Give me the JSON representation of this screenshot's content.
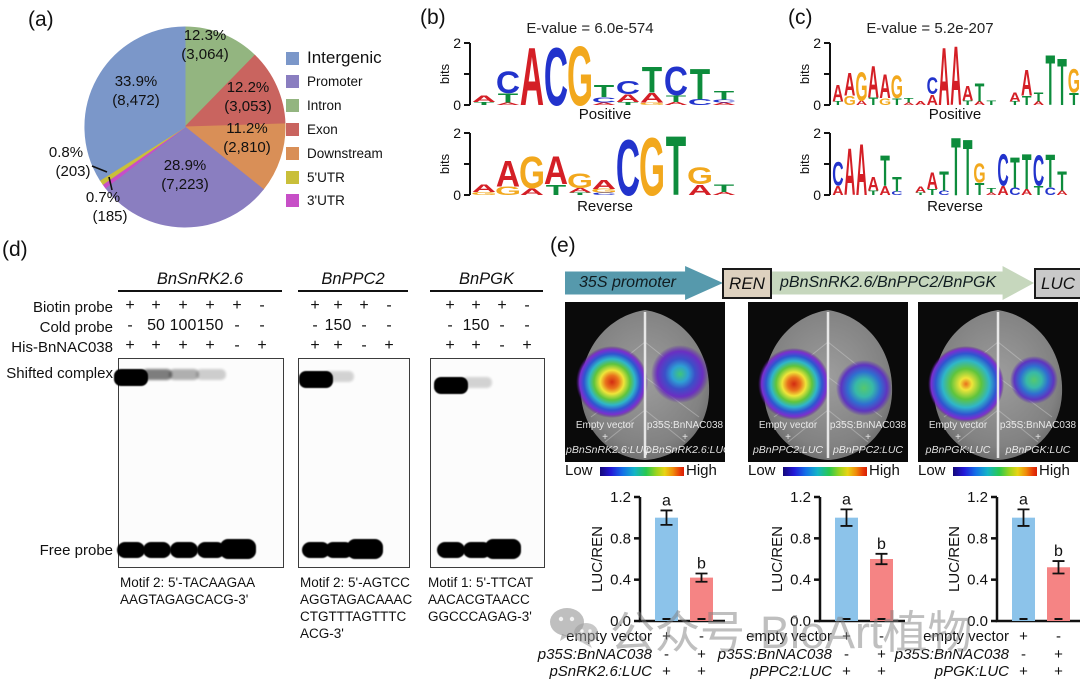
{
  "watermark": {
    "text": "公众号·BioArt植物"
  },
  "panels": {
    "a": {
      "tag": "(a)"
    },
    "b": {
      "tag": "(b)",
      "evalue": "E-value = 6.0e-574",
      "bits": "bits",
      "positive": "Positive",
      "reverse": "Reverse"
    },
    "c": {
      "tag": "(c)",
      "evalue": "E-value = 5.2e-207",
      "bits": "bits",
      "positive": "Positive",
      "reverse": "Reverse"
    },
    "d": {
      "tag": "(d)",
      "row_labels": [
        "Biotin probe",
        "Cold probe",
        "His-BnNAC038"
      ],
      "shifted_label": "Shifted complex",
      "free_label": "Free probe",
      "gels": [
        {
          "name": "BnSnRK2.6",
          "biotin": [
            "+",
            "+",
            "+",
            "+",
            "+",
            "-"
          ],
          "cold": [
            "-",
            "50",
            "100",
            "150",
            "-",
            "-"
          ],
          "his": [
            "+",
            "+",
            "+",
            "+",
            "-",
            "+"
          ],
          "shifted_intensities": [
            1,
            0.5,
            0.3,
            0.18,
            0,
            0
          ],
          "free_bands": [
            1,
            1,
            1,
            1,
            1.45,
            0
          ],
          "motif": "Motif 2: 5'-TACAAGAA\nAAGTAGAGCACG-3'"
        },
        {
          "name": "BnPPC2",
          "biotin": [
            "+",
            "+",
            "+",
            "-"
          ],
          "cold": [
            "-",
            "150",
            "-",
            "-"
          ],
          "his": [
            "+",
            "+",
            "-",
            "+"
          ],
          "shifted_intensities": [
            1,
            0.16,
            0,
            0
          ],
          "free_bands": [
            1,
            1,
            1.5,
            0
          ],
          "motif": "Motif 2: 5'-AGTCC\nAGGTAGACAAAC\nCTGTTTAGTTTC\nACG-3'"
        },
        {
          "name": "BnPGK",
          "biotin": [
            "+",
            "+",
            "+",
            "-"
          ],
          "cold": [
            "-",
            "150",
            "-",
            "-"
          ],
          "his": [
            "+",
            "+",
            "-",
            "+"
          ],
          "shifted_intensities": [
            1,
            0.16,
            0,
            0
          ],
          "free_bands": [
            1,
            1,
            1.5,
            0
          ],
          "motif": "Motif 1: 5'-TTCAT\nAACACGTAACC\nGGCCCAGAG-3'"
        }
      ]
    },
    "e": {
      "tag": "(e)",
      "construct": {
        "promoter": "35S promoter",
        "ren": "REN",
        "genes": "pBnSnRK2.6/BnPPC2/BnPGK",
        "luc": "LUC"
      },
      "leaves": [
        {
          "left": [
            "Empty vector",
            "+",
            "pBnSnRK2.6:LUC"
          ],
          "right": [
            "p35S:BnNAC038",
            "+",
            "pBnSnRK2.6:LUC"
          ],
          "low": "Low",
          "high": "High"
        },
        {
          "left": [
            "Empty vector",
            "+",
            "pBnPPC2:LUC"
          ],
          "right": [
            "p35S:BnNAC038",
            "+",
            "pBnPPC2:LUC"
          ],
          "low": "Low",
          "high": "High"
        },
        {
          "left": [
            "Empty vector",
            "+",
            "pBnPGK:LUC"
          ],
          "right": [
            "p35S:BnNAC038",
            "+",
            "pBnPGK:LUC"
          ],
          "low": "Low",
          "high": "High"
        }
      ]
    }
  },
  "chart_data": [
    {
      "type": "pie",
      "slices": [
        {
          "label": "Intron",
          "pct": 12.3,
          "count": "3,064",
          "color": "#93b580"
        },
        {
          "label": "Exon",
          "pct": 12.2,
          "count": "3,053",
          "color": "#c9645f"
        },
        {
          "label": "Downstream",
          "pct": 11.2,
          "count": "2,810",
          "color": "#d98f57"
        },
        {
          "label": "Promoter",
          "pct": 28.9,
          "count": "7,223",
          "color": "#8a7ec0"
        },
        {
          "label": "3'UTR",
          "pct": 0.7,
          "count": "185",
          "color": "#c74fc7"
        },
        {
          "label": "5'UTR",
          "pct": 0.8,
          "count": "203",
          "color": "#c9bf3a"
        },
        {
          "label": "Intergenic",
          "pct": 33.9,
          "count": "8,472",
          "color": "#7b97c9"
        }
      ],
      "legend": [
        "Intergenic",
        "Promoter",
        "Intron",
        "Exon",
        "Downstream",
        "5'UTR",
        "3'UTR"
      ]
    },
    {
      "type": "bar",
      "ylabel": "LUC/REN",
      "ylim": [
        0,
        1.2
      ],
      "yticks": [
        "0.0",
        "0.4",
        "0.8",
        "1.2"
      ],
      "bars": [
        {
          "value": 1.0,
          "err": 0.07,
          "letter": "a",
          "color": "#8cc3ea"
        },
        {
          "value": 0.42,
          "err": 0.04,
          "letter": "b",
          "color": "#f58484"
        }
      ],
      "rows": [
        {
          "label": "empty vector",
          "italic": false,
          "symbols": [
            "+",
            "-"
          ]
        },
        {
          "label": "p35S:BnNAC038",
          "italic": true,
          "symbols": [
            "-",
            "+"
          ]
        },
        {
          "label": "pSnRK2.6:LUC",
          "italic": true,
          "symbols": [
            "+",
            "+"
          ]
        }
      ]
    },
    {
      "type": "bar",
      "ylabel": "LUC/REN",
      "ylim": [
        0,
        1.2
      ],
      "yticks": [
        "0.0",
        "0.4",
        "0.8",
        "1.2"
      ],
      "bars": [
        {
          "value": 1.0,
          "err": 0.08,
          "letter": "a",
          "color": "#8cc3ea"
        },
        {
          "value": 0.6,
          "err": 0.05,
          "letter": "b",
          "color": "#f58484"
        }
      ],
      "rows": [
        {
          "label": "empty vector",
          "italic": false,
          "symbols": [
            "+",
            "-"
          ]
        },
        {
          "label": "p35S:BnNAC038",
          "italic": true,
          "symbols": [
            "-",
            "+"
          ]
        },
        {
          "label": "pPPC2:LUC",
          "italic": true,
          "symbols": [
            "+",
            "+"
          ]
        }
      ]
    },
    {
      "type": "bar",
      "ylabel": "LUC/REN",
      "ylim": [
        0,
        1.2
      ],
      "yticks": [
        "0.0",
        "0.4",
        "0.8",
        "1.2"
      ],
      "bars": [
        {
          "value": 1.0,
          "err": 0.08,
          "letter": "a",
          "color": "#8cc3ea"
        },
        {
          "value": 0.52,
          "err": 0.06,
          "letter": "b",
          "color": "#f58484"
        }
      ],
      "rows": [
        {
          "label": "empty vector",
          "italic": false,
          "symbols": [
            "+",
            "-"
          ]
        },
        {
          "label": "p35S:BnNAC038",
          "italic": true,
          "symbols": [
            "-",
            "+"
          ]
        },
        {
          "label": "pPGK:LUC",
          "italic": true,
          "symbols": [
            "+",
            "+"
          ]
        }
      ]
    },
    {
      "type": "sequence_logo",
      "id": "b_positive",
      "ylabel": "bits",
      "ylim": [
        0,
        2
      ],
      "columns": [
        [
          [
            "A",
            0.22
          ],
          [
            "T",
            0.1
          ]
        ],
        [
          [
            "C",
            0.72
          ],
          [
            "T",
            0.3
          ],
          [
            "A",
            0.08
          ]
        ],
        [
          [
            "A",
            1.9
          ]
        ],
        [
          [
            "C",
            1.92
          ]
        ],
        [
          [
            "G",
            1.95
          ]
        ],
        [
          [
            "T",
            0.4
          ],
          [
            "C",
            0.18
          ],
          [
            "A",
            0.08
          ]
        ],
        [
          [
            "C",
            0.42
          ],
          [
            "A",
            0.25
          ],
          [
            "T",
            0.1
          ]
        ],
        [
          [
            "T",
            0.85
          ],
          [
            "A",
            0.33
          ],
          [
            "G",
            0.08
          ]
        ],
        [
          [
            "C",
            0.95
          ],
          [
            "T",
            0.22
          ],
          [
            "A",
            0.1
          ]
        ],
        [
          [
            "T",
            1.0
          ],
          [
            "C",
            0.2
          ]
        ],
        [
          [
            "T",
            0.28
          ],
          [
            "C",
            0.1
          ],
          [
            "A",
            0.08
          ]
        ]
      ]
    },
    {
      "type": "sequence_logo",
      "id": "b_reverse",
      "ylabel": "bits",
      "ylim": [
        0,
        2
      ],
      "columns": [
        [
          [
            "A",
            0.25
          ],
          [
            "G",
            0.1
          ]
        ],
        [
          [
            "A",
            0.85
          ],
          [
            "G",
            0.28
          ]
        ],
        [
          [
            "G",
            1.05
          ],
          [
            "A",
            0.22
          ]
        ],
        [
          [
            "A",
            0.92
          ],
          [
            "T",
            0.35
          ]
        ],
        [
          [
            "G",
            0.5
          ],
          [
            "A",
            0.15
          ],
          [
            "T",
            0.08
          ]
        ],
        [
          [
            "A",
            0.3
          ],
          [
            "G",
            0.12
          ],
          [
            "C",
            0.08
          ]
        ],
        [
          [
            "C",
            1.85
          ]
        ],
        [
          [
            "G",
            1.9
          ]
        ],
        [
          [
            "T",
            1.95
          ]
        ],
        [
          [
            "G",
            0.55
          ],
          [
            "A",
            0.35
          ]
        ],
        [
          [
            "T",
            0.25
          ],
          [
            "A",
            0.1
          ]
        ]
      ]
    },
    {
      "type": "sequence_logo",
      "id": "c_positive",
      "ylabel": "bits",
      "ylim": [
        0,
        2
      ],
      "columns": [
        [
          [
            "A",
            0.55
          ],
          [
            "T",
            0.12
          ]
        ],
        [
          [
            "A",
            0.75
          ],
          [
            "G",
            0.3
          ]
        ],
        [
          [
            "G",
            0.95
          ],
          [
            "A",
            0.15
          ]
        ],
        [
          [
            "A",
            1.05
          ],
          [
            "T",
            0.25
          ]
        ],
        [
          [
            "A",
            0.8
          ],
          [
            "G",
            0.22
          ]
        ],
        [
          [
            "G",
            0.75
          ],
          [
            "T",
            0.22
          ]
        ],
        [
          [
            "T",
            0.15
          ],
          [
            "A",
            0.08
          ]
        ],
        [
          [
            "A",
            0.12
          ]
        ],
        [
          [
            "C",
            0.55
          ],
          [
            "A",
            0.35
          ]
        ],
        [
          [
            "A",
            1.9
          ]
        ],
        [
          [
            "A",
            1.95
          ]
        ],
        [
          [
            "A",
            0.5
          ],
          [
            "T",
            0.15
          ]
        ],
        [
          [
            "T",
            0.6
          ],
          [
            "A",
            0.12
          ]
        ],
        [
          [
            "T",
            0.15
          ]
        ],
        [],
        [
          [
            "A",
            0.3
          ],
          [
            "T",
            0.12
          ]
        ],
        [
          [
            "A",
            0.85
          ],
          [
            "T",
            0.3
          ]
        ],
        [
          [
            "T",
            0.3
          ],
          [
            "A",
            0.12
          ]
        ],
        [
          [
            "T",
            1.65
          ]
        ],
        [
          [
            "T",
            1.55
          ]
        ],
        [
          [
            "G",
            0.8
          ],
          [
            "T",
            0.4
          ]
        ]
      ]
    },
    {
      "type": "sequence_logo",
      "id": "c_reverse",
      "ylabel": "bits",
      "ylim": [
        0,
        2
      ],
      "columns": [
        [
          [
            "C",
            0.8
          ],
          [
            "A",
            0.3
          ]
        ],
        [
          [
            "A",
            1.55
          ]
        ],
        [
          [
            "A",
            1.7
          ]
        ],
        [
          [
            "A",
            0.45
          ],
          [
            "T",
            0.15
          ]
        ],
        [
          [
            "T",
            1.0
          ],
          [
            "A",
            0.3
          ]
        ],
        [
          [
            "T",
            0.5
          ],
          [
            "C",
            0.12
          ]
        ],
        [],
        [
          [
            "A",
            0.2
          ],
          [
            "T",
            0.08
          ]
        ],
        [
          [
            "A",
            0.55
          ],
          [
            "T",
            0.2
          ]
        ],
        [
          [
            "T",
            0.65
          ],
          [
            "C",
            0.15
          ]
        ],
        [
          [
            "T",
            1.9
          ]
        ],
        [
          [
            "T",
            1.85
          ]
        ],
        [
          [
            "G",
            0.65
          ],
          [
            "T",
            0.4
          ]
        ],
        [
          [
            "T",
            0.15
          ],
          [
            "A",
            0.08
          ]
        ],
        [
          [
            "C",
            1.05
          ],
          [
            "A",
            0.3
          ]
        ],
        [
          [
            "T",
            1.0
          ],
          [
            "C",
            0.25
          ]
        ],
        [
          [
            "T",
            1.15
          ],
          [
            "A",
            0.2
          ]
        ],
        [
          [
            "C",
            1.0
          ],
          [
            "T",
            0.3
          ]
        ],
        [
          [
            "T",
            1.1
          ],
          [
            "C",
            0.25
          ]
        ],
        [
          [
            "T",
            0.65
          ],
          [
            "A",
            0.15
          ]
        ]
      ]
    }
  ]
}
